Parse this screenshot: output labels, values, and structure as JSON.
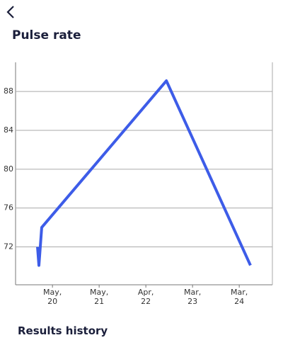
{
  "header": {
    "title": "Pulse rate"
  },
  "chart_data": {
    "type": "line",
    "x": [
      -0.32,
      -0.29,
      -0.23,
      2.44,
      4.24
    ],
    "series": [
      {
        "color": "#3d5ce8",
        "values": [
          72,
          70.1,
          74,
          89.1,
          70.1
        ]
      }
    ],
    "xlim": [
      -0.79,
      4.71
    ],
    "xticks": [
      {
        "value": 0,
        "label": "May,\n20"
      },
      {
        "value": 1,
        "label": "May,\n21"
      },
      {
        "value": 2,
        "label": "Apr,\n22"
      },
      {
        "value": 3,
        "label": "Mar,\n23"
      },
      {
        "value": 4,
        "label": "Mar,\n24"
      }
    ],
    "ylim": [
      68.1,
      91
    ],
    "yticks": [
      72,
      76,
      80,
      84,
      88
    ],
    "grid": true
  },
  "section": {
    "title": "Results history"
  }
}
